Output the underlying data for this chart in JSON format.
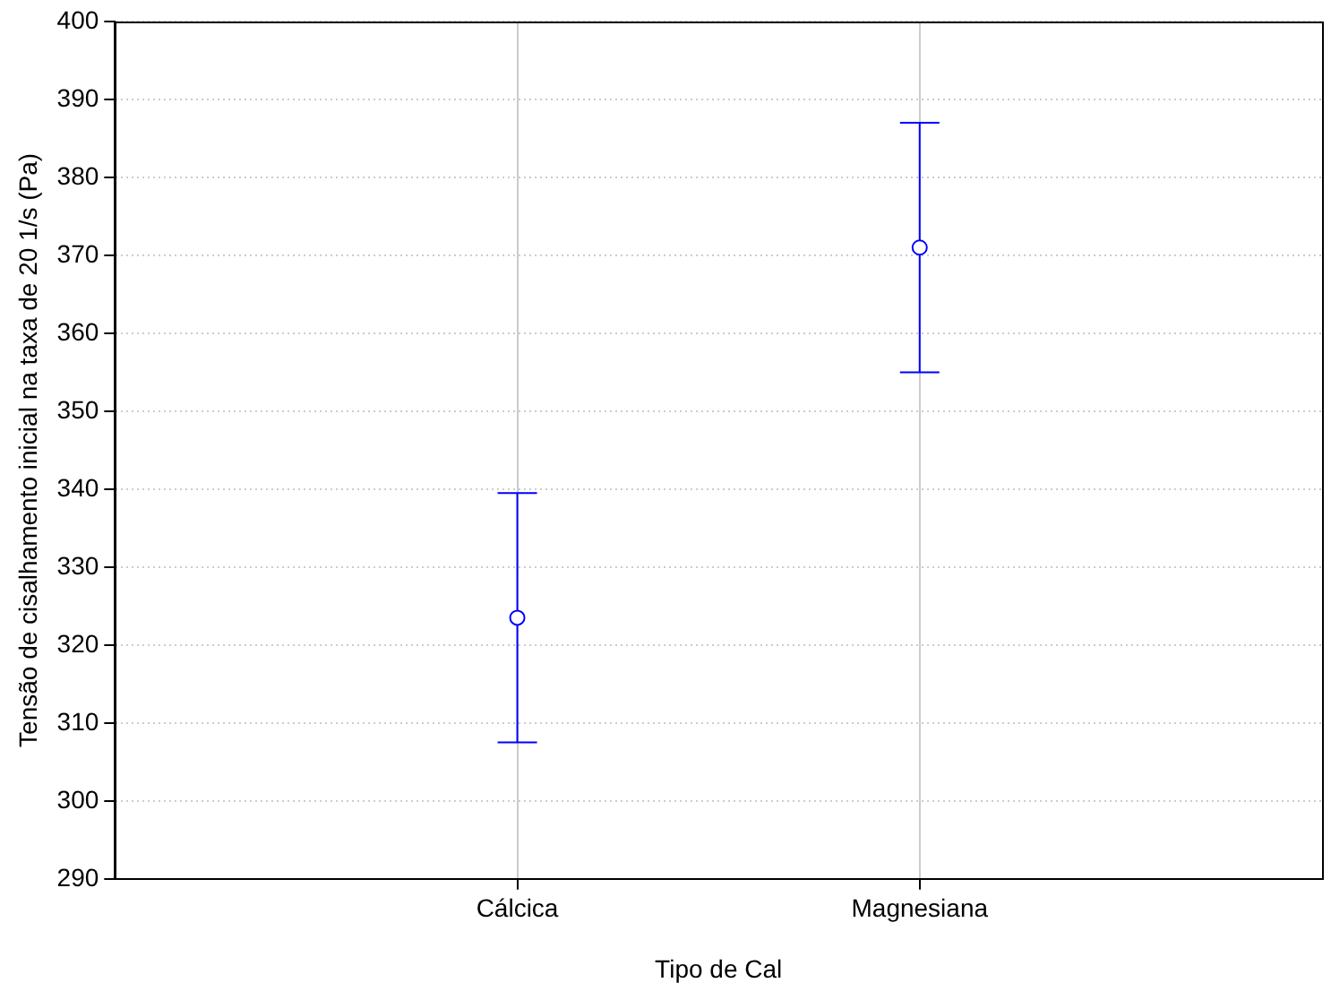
{
  "chart_data": {
    "type": "scatter",
    "xlabel": "Tipo de Cal",
    "ylabel": "Tensão de cisalhamento inicial na taxa de 20 1/s (Pa)",
    "categories": [
      "Cálcica",
      "Magnesiana"
    ],
    "series": [
      {
        "color": "#0000ff",
        "values": [
          323.5,
          371
        ],
        "errors": [
          16,
          16
        ]
      }
    ],
    "ylim": [
      290,
      400
    ],
    "yticks": [
      290,
      300,
      310,
      320,
      330,
      340,
      350,
      360,
      370,
      380,
      390,
      400
    ],
    "grid": true,
    "marker": "circle",
    "legend": false
  }
}
